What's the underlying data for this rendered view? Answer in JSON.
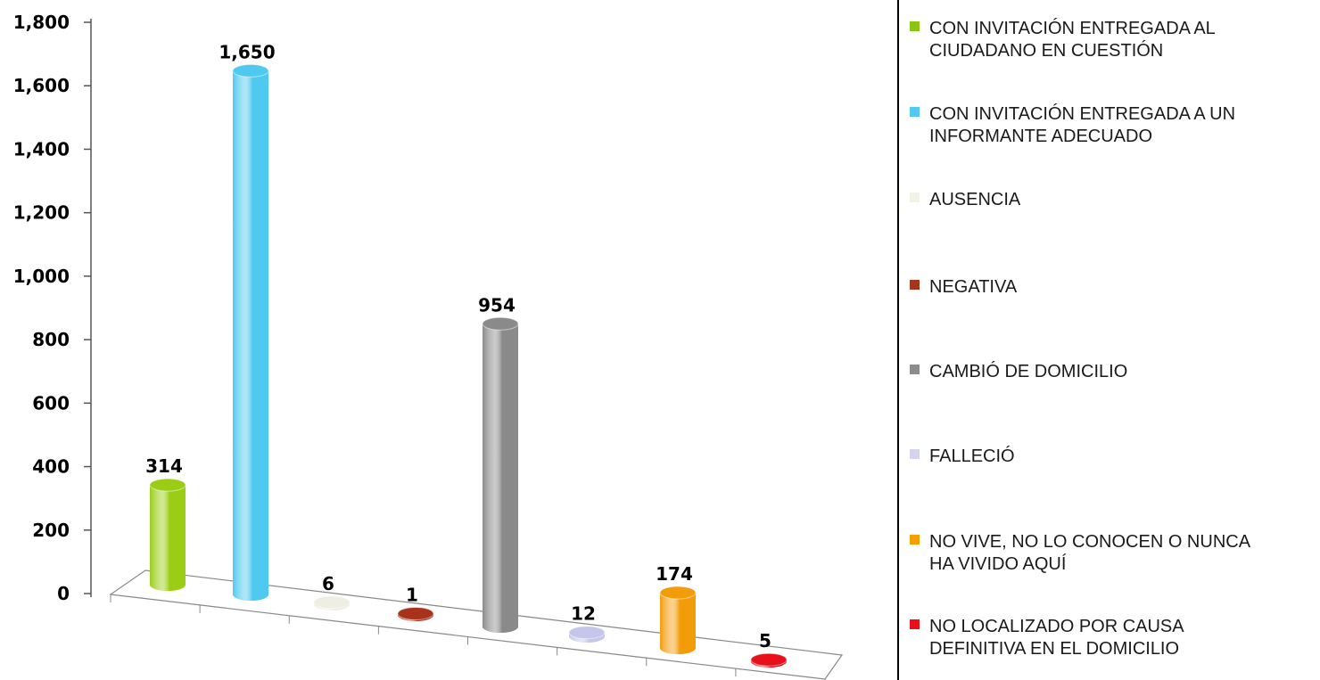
{
  "chart_data": {
    "type": "bar",
    "style": "3d-cylinder",
    "categories": [
      "CON INVITACIÓN ENTREGADA AL CIUDADANO EN CUESTIÓN",
      "CON INVITACIÓN ENTREGADA A UN INFORMANTE ADECUADO",
      "AUSENCIA",
      "NEGATIVA",
      "CAMBIÓ DE DOMICILIO",
      "FALLECIÓ",
      "NO VIVE, NO LO CONOCEN O NUNCA HA VIVIDO AQUÍ",
      "NO LOCALIZADO POR CAUSA DEFINITIVA EN EL DOMICILIO"
    ],
    "values": [
      314,
      1650,
      6,
      1,
      954,
      12,
      174,
      5
    ],
    "value_labels": [
      "314",
      "1,650",
      "6",
      "1",
      "954",
      "12",
      "174",
      "5"
    ],
    "colors": [
      "#9acd14",
      "#4fc9f0",
      "#eeeee2",
      "#a8321a",
      "#8a8a8a",
      "#c6c6ec",
      "#f39c09",
      "#e8101a"
    ],
    "ylim": [
      0,
      1800
    ],
    "yticks": [
      "0",
      "200",
      "400",
      "600",
      "800",
      "1,000",
      "1,200",
      "1,400",
      "1,600",
      "1,800"
    ],
    "legend_position": "right",
    "title": "",
    "xlabel": "",
    "ylabel": ""
  },
  "legend": {
    "items": [
      {
        "lines": [
          "CON INVITACIÓN ENTREGADA AL",
          "CIUDADANO EN CUESTIÓN"
        ],
        "color": "#8cc414"
      },
      {
        "lines": [
          "CON INVITACIÓN ENTREGADA A UN",
          "INFORMANTE ADECUADO"
        ],
        "color": "#54c8ee"
      },
      {
        "lines": [
          "AUSENCIA"
        ],
        "color": "#f2f2e6"
      },
      {
        "lines": [
          "NEGATIVA"
        ],
        "color": "#a3361c"
      },
      {
        "lines": [
          "CAMBIÓ DE DOMICILIO"
        ],
        "color": "#8c8c8c"
      },
      {
        "lines": [
          "FALLECIÓ"
        ],
        "color": "#d4d4f2"
      },
      {
        "lines": [
          "NO VIVE, NO LO CONOCEN O NUNCA",
          "HA VIVIDO AQUÍ"
        ],
        "color": "#f5a000"
      },
      {
        "lines": [
          "NO LOCALIZADO POR CAUSA",
          "DEFINITIVA EN EL DOMICILIO"
        ],
        "color": "#e8101a"
      }
    ]
  }
}
